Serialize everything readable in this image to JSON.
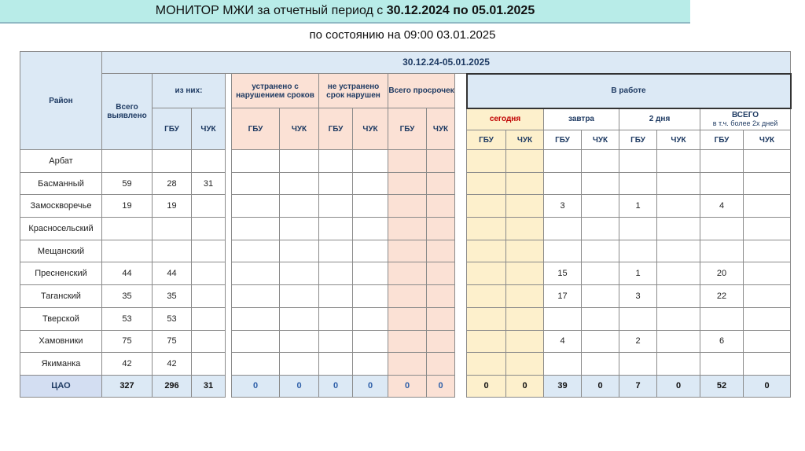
{
  "title": {
    "prefix": "МОНИТОР МЖИ за отчетный период с ",
    "period": "30.12.2024 по 05.01.2025"
  },
  "subtitle": "по состоянию на 09:00 03.01.2025",
  "header": {
    "district": "Район",
    "range": "30.12.24-05.01.2025",
    "total_found": "Всего выявлено",
    "of_them": "из них:",
    "fixed_late": "устранено с нарушением сроков",
    "not_fixed": "не устранено срок нарушен",
    "total_overdue": "Всего просрочек",
    "in_work": "В работе",
    "today": "сегодня",
    "tomorrow": "завтра",
    "two_days": "2 дня",
    "all": "ВСЕГО",
    "all_note": "в т.ч. более 2х дней",
    "gbu": "ГБУ",
    "chuk": "ЧУК"
  },
  "rows": [
    {
      "name": "Арбат",
      "v": [
        "",
        "",
        "",
        "",
        "",
        "",
        "",
        "",
        "",
        "",
        "",
        "",
        "",
        "",
        "",
        "",
        "",
        ""
      ]
    },
    {
      "name": "Басманный",
      "v": [
        "59",
        "28",
        "31",
        "",
        "",
        "",
        "",
        "",
        "",
        "",
        "",
        "",
        "",
        "",
        "",
        "",
        "",
        ""
      ]
    },
    {
      "name": "Замоскворечье",
      "v": [
        "19",
        "19",
        "",
        "",
        "",
        "",
        "",
        "",
        "",
        "",
        "",
        "3",
        "",
        "1",
        "",
        "4",
        "",
        ""
      ]
    },
    {
      "name": "Красносельский",
      "v": [
        "",
        "",
        "",
        "",
        "",
        "",
        "",
        "",
        "",
        "",
        "",
        "",
        "",
        "",
        "",
        "",
        "",
        ""
      ]
    },
    {
      "name": "Мещанский",
      "v": [
        "",
        "",
        "",
        "",
        "",
        "",
        "",
        "",
        "",
        "",
        "",
        "",
        "",
        "",
        "",
        "",
        "",
        ""
      ]
    },
    {
      "name": "Пресненский",
      "v": [
        "44",
        "44",
        "",
        "",
        "",
        "",
        "",
        "",
        "",
        "",
        "",
        "15",
        "",
        "1",
        "",
        "20",
        "",
        ""
      ]
    },
    {
      "name": "Таганский",
      "v": [
        "35",
        "35",
        "",
        "",
        "",
        "",
        "",
        "",
        "",
        "",
        "",
        "17",
        "",
        "3",
        "",
        "22",
        "",
        ""
      ]
    },
    {
      "name": "Тверской",
      "v": [
        "53",
        "53",
        "",
        "",
        "",
        "",
        "",
        "",
        "",
        "",
        "",
        "",
        "",
        "",
        "",
        "",
        "",
        ""
      ]
    },
    {
      "name": "Хамовники",
      "v": [
        "75",
        "75",
        "",
        "",
        "",
        "",
        "",
        "",
        "",
        "",
        "",
        "4",
        "",
        "2",
        "",
        "6",
        "",
        ""
      ]
    },
    {
      "name": "Якиманка",
      "v": [
        "42",
        "42",
        "",
        "",
        "",
        "",
        "",
        "",
        "",
        "",
        "",
        "",
        "",
        "",
        "",
        "",
        "",
        ""
      ]
    }
  ],
  "total": {
    "name": "ЦАО",
    "v": [
      "327",
      "296",
      "31",
      "0",
      "0",
      "0",
      "0",
      "0",
      "0",
      "0",
      "0",
      "39",
      "0",
      "7",
      "0",
      "52",
      "0",
      ""
    ]
  }
}
